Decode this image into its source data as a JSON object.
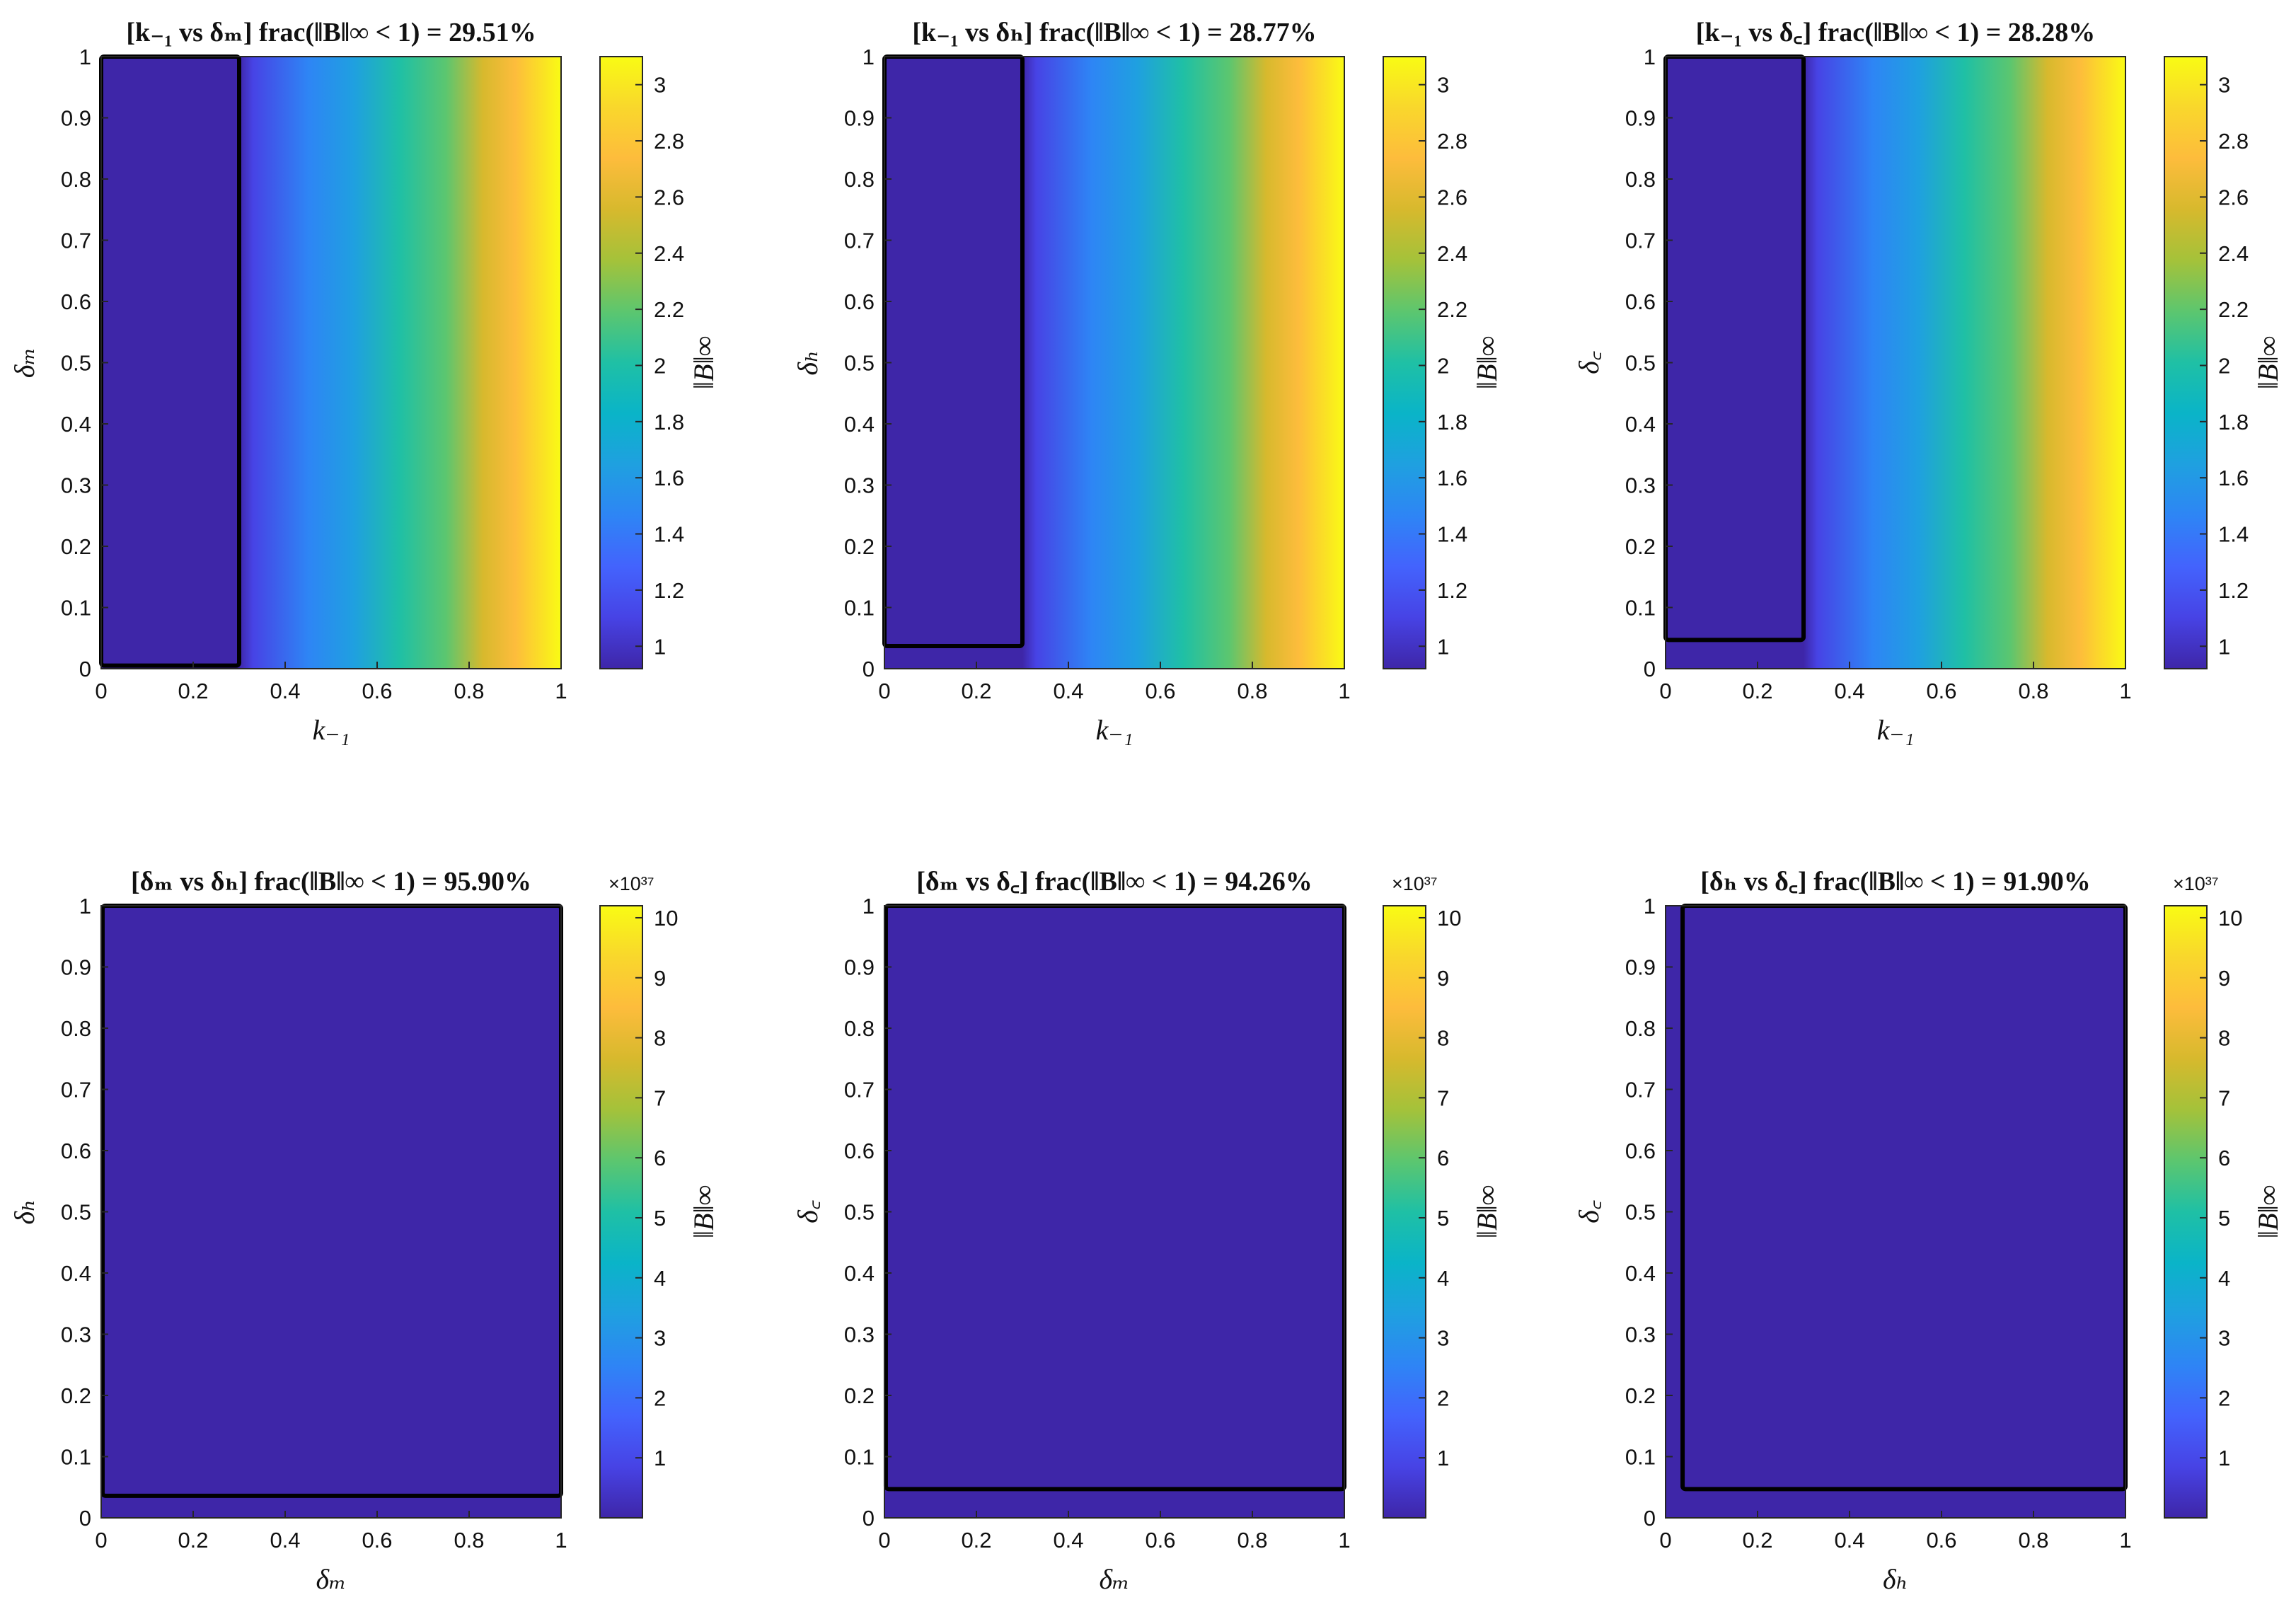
{
  "figure_title": "",
  "colormap": [
    "#3e26a8",
    "#4743e5",
    "#4363fd",
    "#2e85f5",
    "#1fa0e0",
    "#0ab4c8",
    "#1fc0a5",
    "#5cc66f",
    "#a4c23a",
    "#d7b92d",
    "#fdbc3c",
    "#f9d72c",
    "#f9fb14"
  ],
  "contour_color": "#000000",
  "chart_data": [
    {
      "type": "heatmap",
      "title": "[k₋₁ vs δₘ] frac(‖B‖∞ < 1) = 29.51%",
      "xlabel": "k₋₁",
      "ylabel": "δₘ",
      "colorbar_label": "‖B‖∞",
      "xlim": [
        0,
        1
      ],
      "ylim": [
        0,
        1
      ],
      "xticks": [
        "0",
        "0.2",
        "0.4",
        "0.6",
        "0.8",
        "1"
      ],
      "yticks": [
        "0",
        "0.1",
        "0.2",
        "0.3",
        "0.4",
        "0.5",
        "0.6",
        "0.7",
        "0.8",
        "0.9",
        "1"
      ],
      "clim": [
        0.92,
        3.1
      ],
      "cbar_ticks": [
        1,
        1.2,
        1.4,
        1.6,
        1.8,
        2,
        2.2,
        2.4,
        2.6,
        2.8,
        3
      ],
      "cbar_exponent": "",
      "field": "x_gradient",
      "contour": {
        "x0": 0,
        "x1": 0.3,
        "y0": 0.005,
        "y1": 1
      }
    },
    {
      "type": "heatmap",
      "title": "[k₋₁ vs δₕ] frac(‖B‖∞ < 1) = 28.77%",
      "xlabel": "k₋₁",
      "ylabel": "δₕ",
      "colorbar_label": "‖B‖∞",
      "xlim": [
        0,
        1
      ],
      "ylim": [
        0,
        1
      ],
      "xticks": [
        "0",
        "0.2",
        "0.4",
        "0.6",
        "0.8",
        "1"
      ],
      "yticks": [
        "0",
        "0.1",
        "0.2",
        "0.3",
        "0.4",
        "0.5",
        "0.6",
        "0.7",
        "0.8",
        "0.9",
        "1"
      ],
      "clim": [
        0.92,
        3.1
      ],
      "cbar_ticks": [
        1,
        1.2,
        1.4,
        1.6,
        1.8,
        2,
        2.2,
        2.4,
        2.6,
        2.8,
        3
      ],
      "cbar_exponent": "",
      "field": "x_gradient",
      "contour": {
        "x0": 0,
        "x1": 0.3,
        "y0": 0.037,
        "y1": 1
      }
    },
    {
      "type": "heatmap",
      "title": "[k₋₁ vs δ꜀] frac(‖B‖∞ < 1) = 28.28%",
      "xlabel": "k₋₁",
      "ylabel": "δ꜀",
      "colorbar_label": "‖B‖∞",
      "xlim": [
        0,
        1
      ],
      "ylim": [
        0,
        1
      ],
      "xticks": [
        "0",
        "0.2",
        "0.4",
        "0.6",
        "0.8",
        "1"
      ],
      "yticks": [
        "0",
        "0.1",
        "0.2",
        "0.3",
        "0.4",
        "0.5",
        "0.6",
        "0.7",
        "0.8",
        "0.9",
        "1"
      ],
      "clim": [
        0.92,
        3.1
      ],
      "cbar_ticks": [
        1,
        1.2,
        1.4,
        1.6,
        1.8,
        2,
        2.2,
        2.4,
        2.6,
        2.8,
        3
      ],
      "cbar_exponent": "",
      "field": "x_gradient",
      "contour": {
        "x0": 0,
        "x1": 0.3,
        "y0": 0.047,
        "y1": 1
      }
    },
    {
      "type": "heatmap",
      "title": "[δₘ vs δₕ] frac(‖B‖∞ < 1) = 95.90%",
      "xlabel": "δₘ",
      "ylabel": "δₕ",
      "colorbar_label": "‖B‖∞",
      "xlim": [
        0,
        1
      ],
      "ylim": [
        0,
        1
      ],
      "xticks": [
        "0",
        "0.2",
        "0.4",
        "0.6",
        "0.8",
        "1"
      ],
      "yticks": [
        "0",
        "0.1",
        "0.2",
        "0.3",
        "0.4",
        "0.5",
        "0.6",
        "0.7",
        "0.8",
        "0.9",
        "1"
      ],
      "clim": [
        0,
        10.2
      ],
      "cbar_ticks": [
        1,
        2,
        3,
        4,
        5,
        6,
        7,
        8,
        9,
        10
      ],
      "cbar_exponent": "×10³⁷",
      "field": "uniform_low",
      "contour": {
        "x0": 0.003,
        "x1": 1,
        "y0": 0.036,
        "y1": 1
      }
    },
    {
      "type": "heatmap",
      "title": "[δₘ vs δ꜀] frac(‖B‖∞ < 1) = 94.26%",
      "xlabel": "δₘ",
      "ylabel": "δ꜀",
      "colorbar_label": "‖B‖∞",
      "xlim": [
        0,
        1
      ],
      "ylim": [
        0,
        1
      ],
      "xticks": [
        "0",
        "0.2",
        "0.4",
        "0.6",
        "0.8",
        "1"
      ],
      "yticks": [
        "0",
        "0.1",
        "0.2",
        "0.3",
        "0.4",
        "0.5",
        "0.6",
        "0.7",
        "0.8",
        "0.9",
        "1"
      ],
      "clim": [
        0,
        10.2
      ],
      "cbar_ticks": [
        1,
        2,
        3,
        4,
        5,
        6,
        7,
        8,
        9,
        10
      ],
      "cbar_exponent": "×10³⁷",
      "field": "uniform_low",
      "contour": {
        "x0": 0.003,
        "x1": 1,
        "y0": 0.047,
        "y1": 1
      }
    },
    {
      "type": "heatmap",
      "title": "[δₕ vs δ꜀] frac(‖B‖∞ < 1) = 91.90%",
      "xlabel": "δₕ",
      "ylabel": "δ꜀",
      "colorbar_label": "‖B‖∞",
      "xlim": [
        0,
        1
      ],
      "ylim": [
        0,
        1
      ],
      "xticks": [
        "0",
        "0.2",
        "0.4",
        "0.6",
        "0.8",
        "1"
      ],
      "yticks": [
        "0",
        "0.1",
        "0.2",
        "0.3",
        "0.4",
        "0.5",
        "0.6",
        "0.7",
        "0.8",
        "0.9",
        "1"
      ],
      "clim": [
        0,
        10.2
      ],
      "cbar_ticks": [
        1,
        2,
        3,
        4,
        5,
        6,
        7,
        8,
        9,
        10
      ],
      "cbar_exponent": "×10³⁷",
      "field": "uniform_low",
      "contour": {
        "x0": 0.037,
        "x1": 1,
        "y0": 0.047,
        "y1": 1
      }
    }
  ]
}
